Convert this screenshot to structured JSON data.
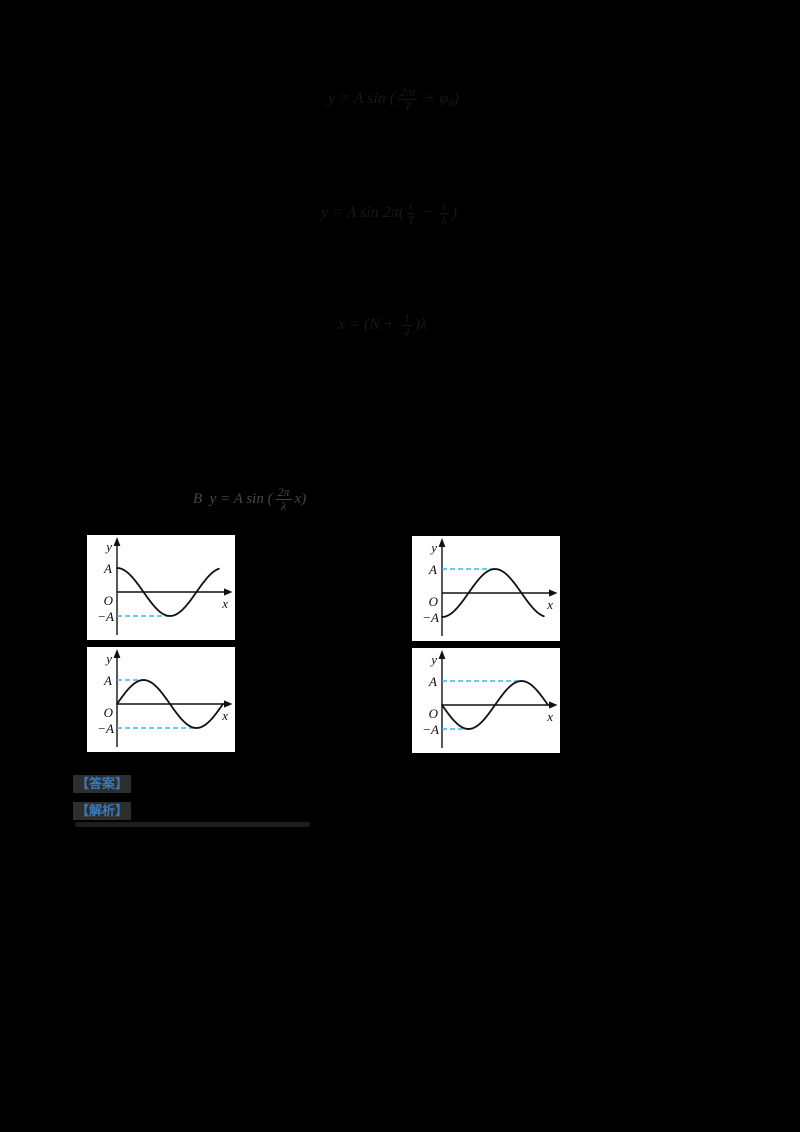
{
  "colors": {
    "background": "#000000",
    "panel_background": "#ffffff",
    "curve": "#111111",
    "dashed_guide": "#3bb9e9",
    "badge_blue": "#3b78b8",
    "badge_background": "#2e2e2e",
    "faint_equation_text": "#181818",
    "formula_text": "#474747"
  },
  "faint_equations": [
    {
      "name": "equation-1",
      "tokens": [
        {
          "t": "txt",
          "v": "y = A sin ("
        },
        {
          "t": "frac",
          "n": "2πt",
          "d": "T"
        },
        {
          "t": "txt",
          "v": " + φ₀)"
        }
      ]
    },
    {
      "name": "equation-2",
      "tokens": [
        {
          "t": "txt",
          "v": "y = A sin 2π("
        },
        {
          "t": "frac",
          "n": "t",
          "d": "T"
        },
        {
          "t": "txt",
          "v": " − "
        },
        {
          "t": "frac",
          "n": "x",
          "d": "λ"
        },
        {
          "t": "txt",
          "v": ")"
        }
      ]
    },
    {
      "name": "equation-3",
      "tokens": [
        {
          "t": "txt",
          "v": "x = (N + "
        },
        {
          "t": "frac",
          "n": "1",
          "d": "4"
        },
        {
          "t": "txt",
          "v": ")λ"
        }
      ]
    }
  ],
  "formula_line": {
    "tokens": [
      {
        "t": "txt",
        "v": "B  y = A sin ("
      },
      {
        "t": "frac",
        "n": "2π",
        "d": "λ"
      },
      {
        "t": "txt",
        "v": "x)"
      }
    ]
  },
  "graph_labels": {
    "y_axis": "y",
    "amplitude": "A",
    "origin": "O",
    "neg_amplitude": "−A",
    "x_axis": "x"
  },
  "badges": [
    {
      "label": "【答案】"
    },
    {
      "label": "【解析】"
    }
  ],
  "chart_data": [
    {
      "type": "line",
      "position": "top-left",
      "title": "wave shape option: y = A·cos-type curve",
      "xlabel": "x",
      "ylabel": "y",
      "amplitude": "A",
      "x_span": "one wavelength",
      "key_points": [
        {
          "x": "0",
          "y": "A"
        },
        {
          "x": "λ/4",
          "y": "0"
        },
        {
          "x": "λ/2",
          "y": "−A"
        },
        {
          "x": "3λ/4",
          "y": "0"
        },
        {
          "x": "λ",
          "y": "A"
        }
      ],
      "dashed_guides_desc": [
        {
          "level": "−A",
          "extends_to": "minimum at λ/2"
        }
      ],
      "render": {
        "func": "cos",
        "drawn": 0.96,
        "guides": [
          {
            "sign": -1,
            "to": 0.5
          }
        ]
      }
    },
    {
      "type": "line",
      "position": "top-right",
      "title": "wave shape option: y = −A·cos-type curve",
      "xlabel": "x",
      "ylabel": "y",
      "amplitude": "A",
      "x_span": "one wavelength",
      "key_points": [
        {
          "x": "0",
          "y": "−A"
        },
        {
          "x": "λ/4",
          "y": "0"
        },
        {
          "x": "λ/2",
          "y": "A"
        },
        {
          "x": "3λ/4",
          "y": "0"
        },
        {
          "x": "λ",
          "y": "−A"
        }
      ],
      "dashed_guides_desc": [
        {
          "level": "A",
          "extends_to": "maximum at λ/2"
        }
      ],
      "render": {
        "func": "neg-cos",
        "drawn": 0.96,
        "guides": [
          {
            "sign": 1,
            "to": 0.5
          }
        ]
      }
    },
    {
      "type": "line",
      "position": "bottom-left",
      "title": "wave shape option: y = A·sin-type curve",
      "xlabel": "x",
      "ylabel": "y",
      "amplitude": "A",
      "x_span": "one wavelength",
      "key_points": [
        {
          "x": "0",
          "y": "0"
        },
        {
          "x": "λ/4",
          "y": "A"
        },
        {
          "x": "λ/2",
          "y": "0"
        },
        {
          "x": "3λ/4",
          "y": "−A"
        },
        {
          "x": "λ",
          "y": "0"
        }
      ],
      "dashed_guides_desc": [
        {
          "level": "A",
          "extends_to": "maximum at λ/4"
        },
        {
          "level": "−A",
          "extends_to": "minimum at 3λ/4"
        }
      ],
      "render": {
        "func": "sin",
        "drawn": 1.0,
        "guides": [
          {
            "sign": 1,
            "to": 0.25
          },
          {
            "sign": -1,
            "to": 0.75
          }
        ]
      }
    },
    {
      "type": "line",
      "position": "bottom-right",
      "title": "wave shape option: y = −A·sin-type curve",
      "xlabel": "x",
      "ylabel": "y",
      "amplitude": "A",
      "x_span": "one wavelength",
      "key_points": [
        {
          "x": "0",
          "y": "0"
        },
        {
          "x": "λ/4",
          "y": "−A"
        },
        {
          "x": "λ/2",
          "y": "0"
        },
        {
          "x": "3λ/4",
          "y": "A"
        },
        {
          "x": "λ",
          "y": "0"
        }
      ],
      "dashed_guides_desc": [
        {
          "level": "−A",
          "extends_to": "minimum at λ/4"
        },
        {
          "level": "A",
          "extends_to": "maximum at 3λ/4"
        }
      ],
      "render": {
        "func": "neg-sin",
        "drawn": 1.0,
        "guides": [
          {
            "sign": -1,
            "to": 0.25
          },
          {
            "sign": 1,
            "to": 0.75
          }
        ]
      }
    }
  ]
}
